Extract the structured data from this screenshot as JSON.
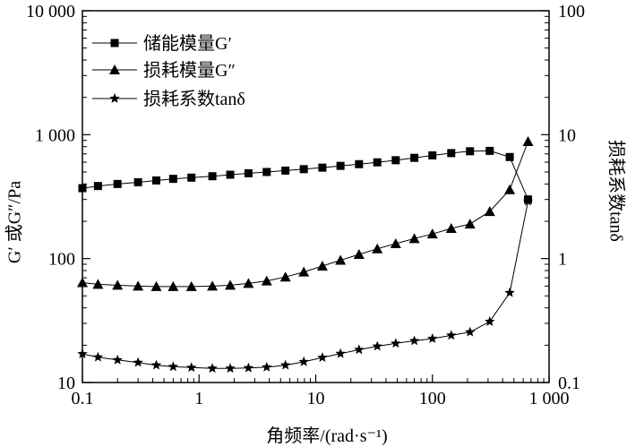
{
  "chart_data": {
    "type": "line",
    "xlabel": "角频率/(rad·s⁻¹)",
    "ylabel_left": "G′ 或G″/Pa",
    "ylabel_right": "损耗系数tanδ",
    "x_scale": "log",
    "y_scale": "log",
    "xlim": [
      0.1,
      1000
    ],
    "ylim_left": [
      10,
      10000
    ],
    "ylim_right": [
      0.1,
      100
    ],
    "x_ticks": [
      0.1,
      1,
      10,
      100,
      1000
    ],
    "x_tick_labels": [
      "0.1",
      "1",
      "10",
      "100",
      "1 000"
    ],
    "y_left_ticks": [
      10,
      100,
      1000,
      10000
    ],
    "y_left_tick_labels": [
      "10",
      "100",
      "1 000",
      "10 000"
    ],
    "y_right_ticks": [
      0.1,
      1,
      10,
      100
    ],
    "y_right_tick_labels": [
      "0.1",
      "1",
      "10",
      "100"
    ],
    "legend_position": "top-left",
    "x": [
      0.1,
      0.136,
      0.2,
      0.3,
      0.43,
      0.6,
      0.86,
      1.3,
      1.85,
      2.65,
      3.8,
      5.5,
      7.9,
      11.4,
      16.3,
      23.5,
      33.7,
      48.5,
      70,
      100,
      145,
      210,
      310,
      460,
      660
    ],
    "series": [
      {
        "name": "储能模量G′",
        "axis": "left",
        "marker": "square",
        "values": [
          370,
          385,
          400,
          413,
          427,
          440,
          450,
          462,
          475,
          488,
          500,
          513,
          527,
          542,
          560,
          578,
          598,
          622,
          650,
          680,
          710,
          735,
          740,
          660,
          300
        ]
      },
      {
        "name": "损耗模量G″",
        "axis": "left",
        "marker": "triangle",
        "values": [
          64,
          62,
          61,
          60,
          59.5,
          59.5,
          59.5,
          60,
          61,
          63,
          66,
          71,
          78,
          87,
          97,
          108,
          120,
          132,
          145,
          158,
          175,
          190,
          240,
          360,
          880
        ]
      },
      {
        "name": "损耗系数tanδ",
        "axis": "right",
        "marker": "star",
        "values": [
          0.17,
          0.16,
          0.152,
          0.145,
          0.138,
          0.134,
          0.132,
          0.13,
          0.13,
          0.131,
          0.133,
          0.138,
          0.147,
          0.159,
          0.171,
          0.184,
          0.196,
          0.207,
          0.217,
          0.226,
          0.24,
          0.255,
          0.31,
          0.53,
          2.9
        ]
      }
    ]
  }
}
